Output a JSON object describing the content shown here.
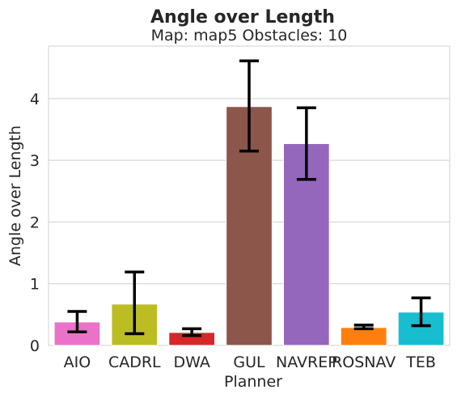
{
  "chart_data": {
    "type": "bar",
    "title": "Angle over Length",
    "subtitle": "Map: map5 Obstacles: 10",
    "xlabel": "Planner",
    "ylabel": "Angle over Length",
    "ylim": [
      0,
      4.85
    ],
    "yticks": [
      "0",
      "1",
      "2",
      "3",
      "4"
    ],
    "grid": true,
    "categories": [
      "AIO",
      "CADRL",
      "DWA",
      "GUL",
      "NAVREP",
      "ROSNAV",
      "TEB"
    ],
    "values": [
      0.38,
      0.67,
      0.21,
      3.87,
      3.27,
      0.29,
      0.54
    ],
    "error_low": [
      0.22,
      0.19,
      0.16,
      3.15,
      2.69,
      0.27,
      0.32
    ],
    "error_high": [
      0.55,
      1.19,
      0.27,
      4.61,
      3.85,
      0.33,
      0.77
    ],
    "colors": [
      "#ea72c8",
      "#bcbd22",
      "#d62728",
      "#8c564b",
      "#9467bd",
      "#ff7f0e",
      "#17becf"
    ]
  }
}
